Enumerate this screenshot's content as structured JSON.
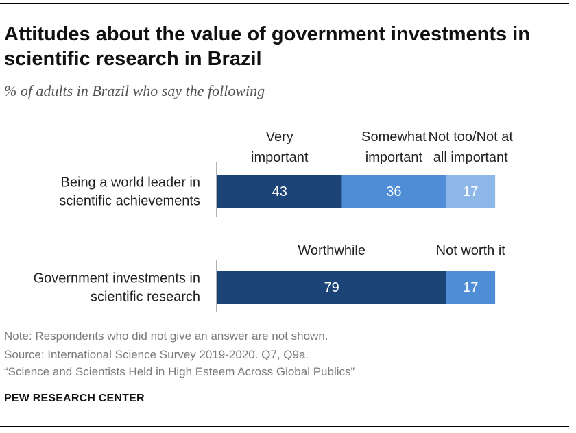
{
  "title": "Attitudes about the value of government investments in scientific research in Brazil",
  "subtitle": "% of adults in Brazil who say the following",
  "colors": {
    "dark": "#1d4477",
    "medium": "#4f8dd6",
    "light": "#8db7e8"
  },
  "chart_data": {
    "type": "bar",
    "orientation": "horizontal-stacked",
    "charts": [
      {
        "question": [
          "Being a world leader in",
          "scientific achievements"
        ],
        "segments": [
          {
            "header": [
              "Very",
              "important"
            ],
            "value": 43,
            "color": "#1d4477"
          },
          {
            "header": [
              "Somewhat",
              "important"
            ],
            "value": 36,
            "color": "#4f8dd6"
          },
          {
            "header": [
              "Not too/Not at",
              "all important"
            ],
            "value": 17,
            "color": "#8db7e8"
          }
        ]
      },
      {
        "question": [
          "Government investments in",
          "scientific research"
        ],
        "segments": [
          {
            "header": [
              "Worthwhile"
            ],
            "value": 79,
            "color": "#1d4477"
          },
          {
            "header": [
              "Not worth it"
            ],
            "value": 17,
            "color": "#4f8dd6"
          }
        ]
      }
    ],
    "xlim": [
      0,
      100
    ]
  },
  "footer": {
    "note": "Note: Respondents who did not give an answer are not shown.",
    "source": "Source: International Science Survey 2019-2020. Q7, Q9a.",
    "report": "“Science and Scientists Held in High Esteem Across Global Publics”",
    "brand": "PEW RESEARCH CENTER"
  }
}
